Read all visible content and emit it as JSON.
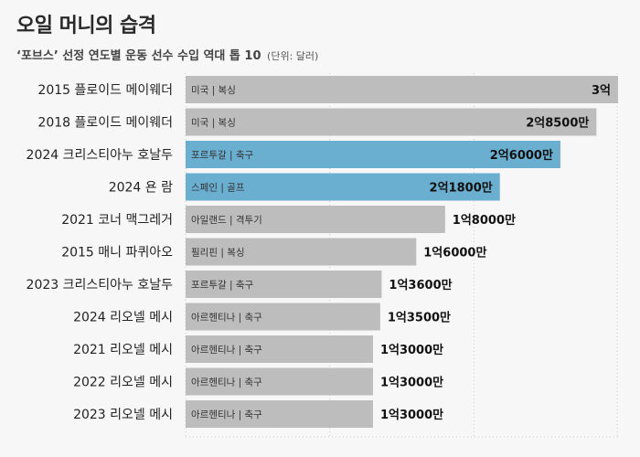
{
  "header": {
    "title": "오일 머니의 습격",
    "subtitle": "‘포브스’ 선정 연도별 운동 선수 수입 역대 톱 10",
    "unit": "(단위: 달러)"
  },
  "colors": {
    "default_bar": "#bdbdbd",
    "highlight_bar": "#6aaed0",
    "grid": "#c9c9c9"
  },
  "chart_data": {
    "type": "bar",
    "orientation": "horizontal",
    "title": "오일 머니의 습격",
    "subtitle": "‘포브스’ 선정 연도별 운동 선수 수입 역대 톱 10",
    "unit": "(단위: 달러)",
    "xlim": [
      0,
      300000000
    ],
    "grid": true,
    "categories": [
      "2015 플로이드 메이웨더",
      "2018 플로이드 메이웨더",
      "2024 크리스티아누 호날두",
      "2024 욘 람",
      "2021 코너 맥그레거",
      "2015 매니 파퀴아오",
      "2023 크리스티아누 호날두",
      "2024 리오넬 메시",
      "2021 리오넬 메시",
      "2022 리오넬 메시",
      "2023 리오넬 메시"
    ],
    "values": [
      300000000,
      285000000,
      260000000,
      218000000,
      180000000,
      160000000,
      136000000,
      135000000,
      130000000,
      130000000,
      130000000
    ],
    "value_labels": [
      "3억",
      "2억8500만",
      "2억6000만",
      "2억1800만",
      "1억8000만",
      "1억6000만",
      "1억3600만",
      "1억3500만",
      "1억3000만",
      "1억3000만",
      "1억3000만"
    ],
    "bar_tags": [
      "미국 | 복싱",
      "미국 | 복싱",
      "포르투갈 | 축구",
      "스페인 | 골프",
      "아일랜드 | 격투기",
      "필리핀 | 복싱",
      "포르투갈 | 축구",
      "아르헨티나 | 축구",
      "아르헨티나 | 축구",
      "아르헨티나 | 축구",
      "아르헨티나 | 축구"
    ],
    "highlighted": [
      false,
      false,
      true,
      true,
      false,
      false,
      false,
      false,
      false,
      false,
      false
    ]
  }
}
